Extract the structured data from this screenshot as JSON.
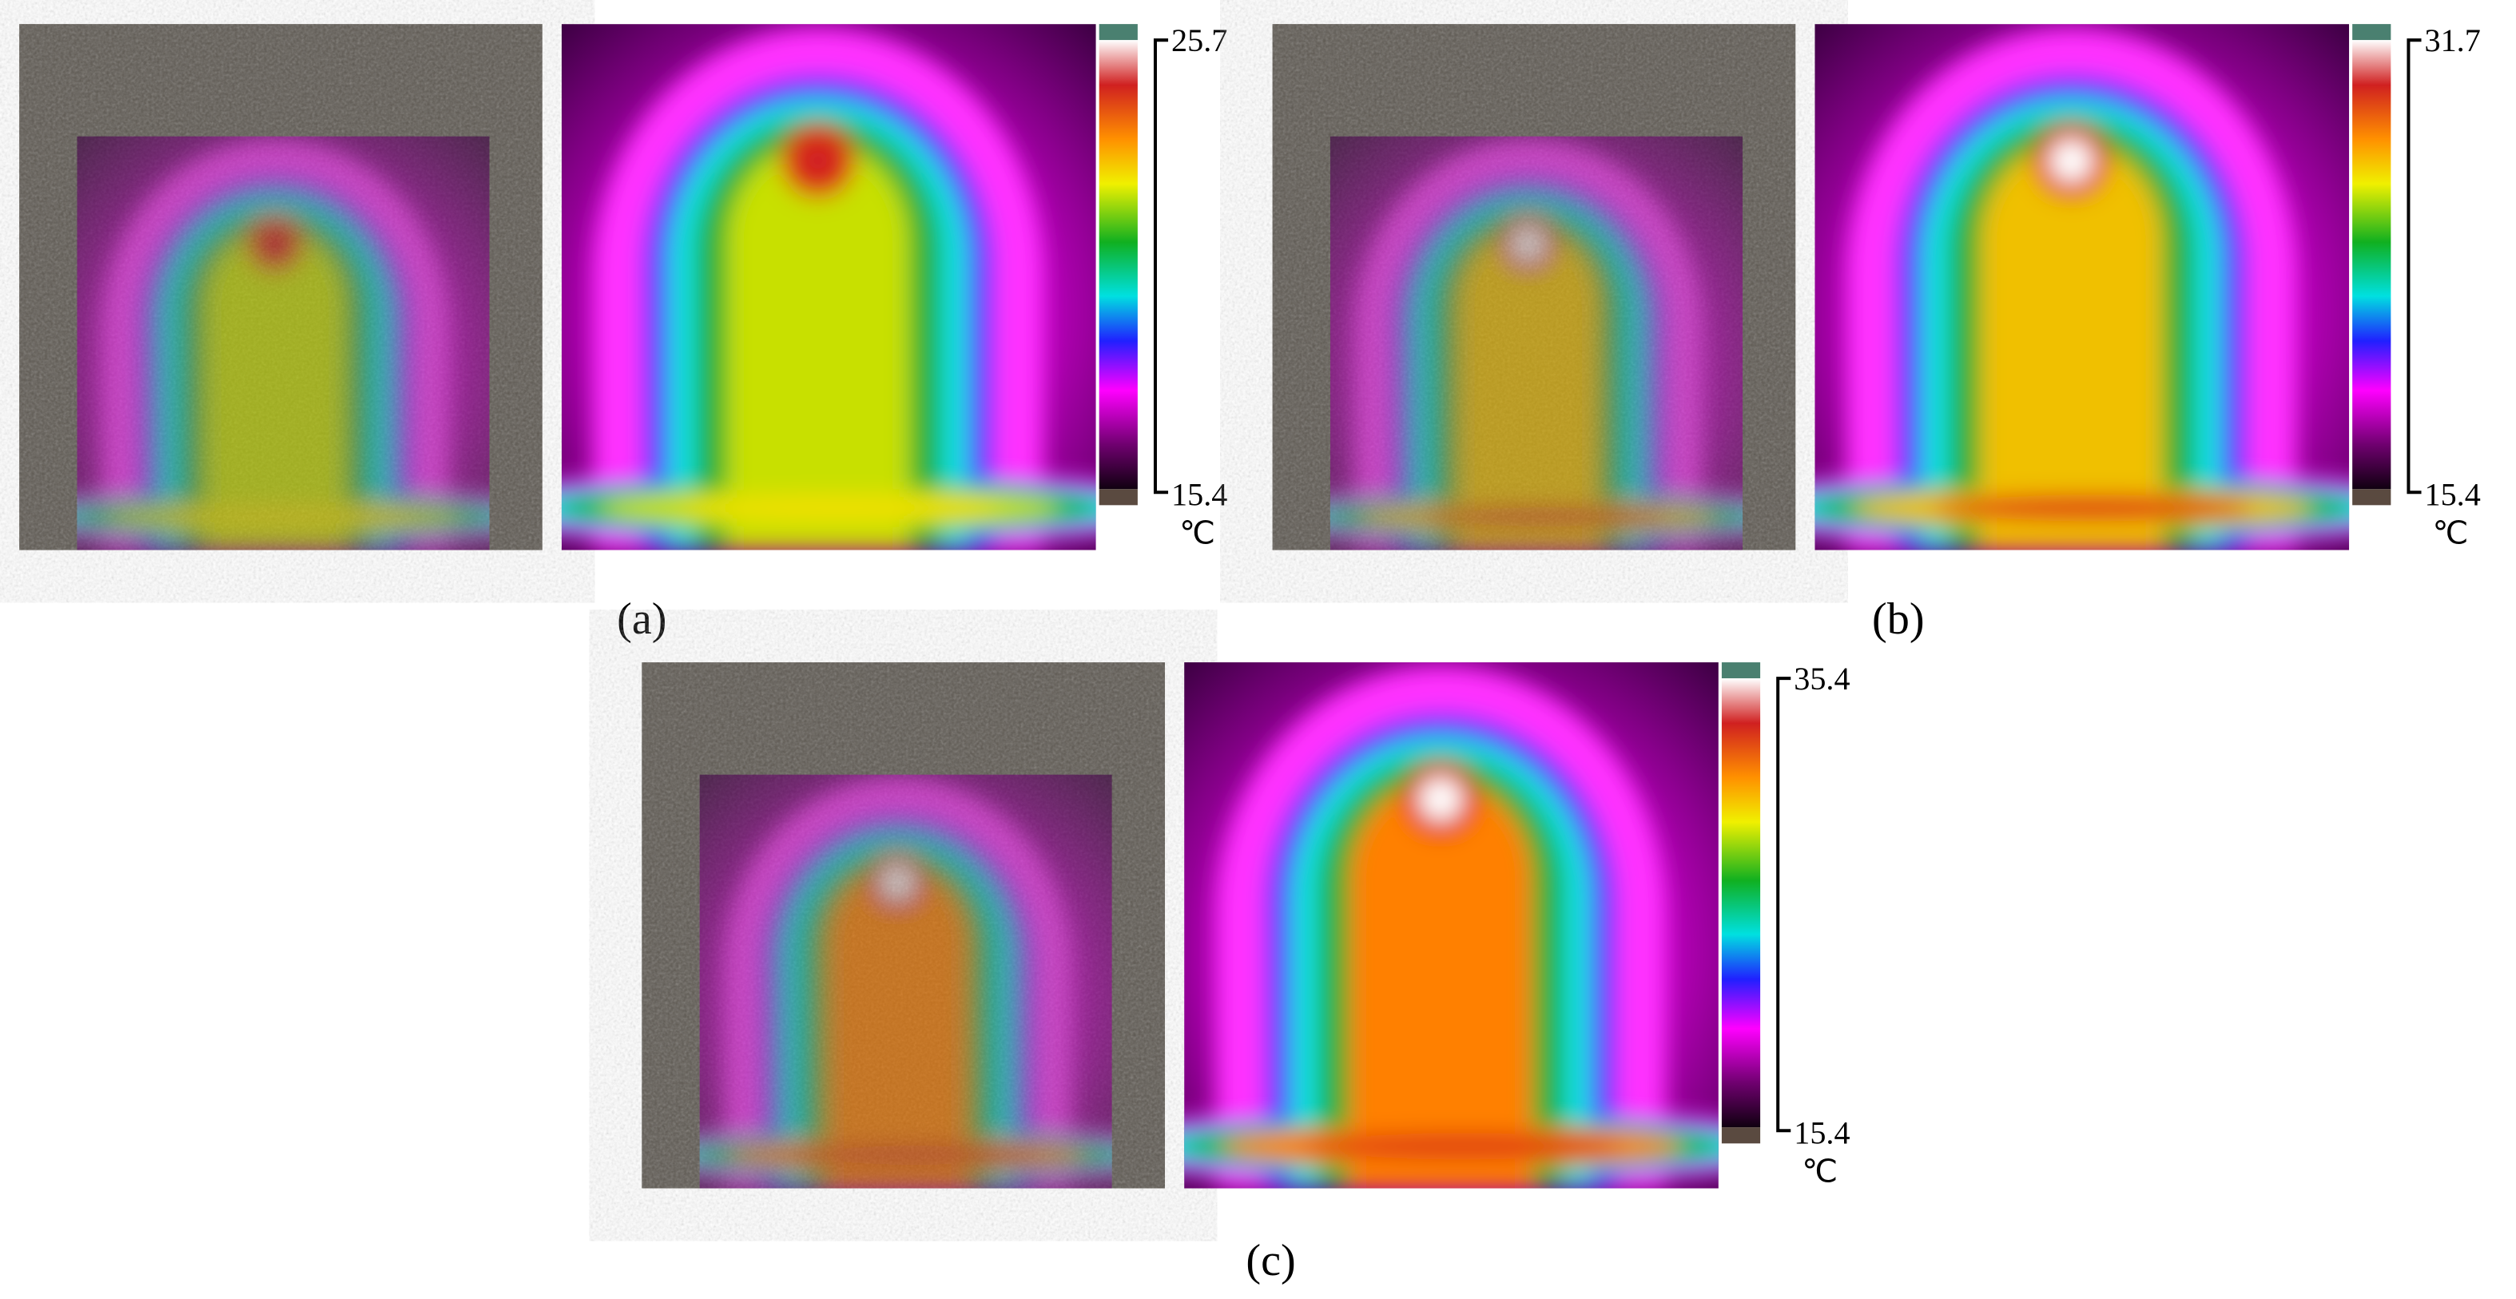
{
  "panels": [
    {
      "label": "(a)",
      "max": 25.7,
      "min": 15.4,
      "unit": "℃"
    },
    {
      "label": "(b)",
      "max": 31.7,
      "min": 15.4,
      "unit": "℃"
    },
    {
      "label": "(c)",
      "max": 35.4,
      "min": 15.4,
      "unit": "℃"
    }
  ]
}
